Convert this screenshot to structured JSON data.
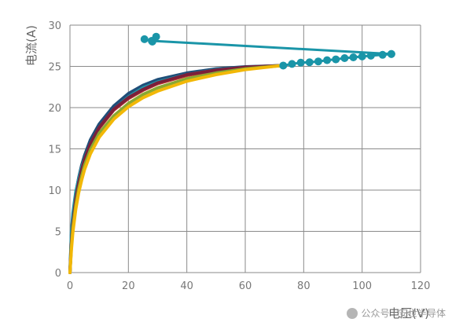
{
  "chart_data": {
    "type": "line",
    "xlabel": "电压(V)",
    "ylabel": "电流(A)",
    "xlim": [
      0,
      120
    ],
    "ylim": [
      0,
      30
    ],
    "x_ticks": [
      0,
      20,
      40,
      60,
      80,
      100,
      120
    ],
    "y_ticks": [
      0,
      5,
      10,
      15,
      20,
      25,
      30
    ],
    "grid": true,
    "curves": [
      {
        "color": "#1f4e79",
        "points": [
          [
            0,
            0
          ],
          [
            0.5,
            4.5
          ],
          [
            1,
            6.8
          ],
          [
            2,
            9.6
          ],
          [
            3,
            11.5
          ],
          [
            4,
            13.0
          ],
          [
            5,
            14.2
          ],
          [
            7,
            16.1
          ],
          [
            10,
            18.0
          ],
          [
            15,
            20.2
          ],
          [
            20,
            21.7
          ],
          [
            25,
            22.7
          ],
          [
            30,
            23.4
          ],
          [
            40,
            24.2
          ],
          [
            50,
            24.7
          ],
          [
            60,
            24.95
          ],
          [
            72.5,
            25.1
          ]
        ]
      },
      {
        "color": "#2196a8",
        "points": [
          [
            0,
            0
          ],
          [
            0.5,
            5.0
          ],
          [
            1,
            7.2
          ],
          [
            2,
            9.8
          ],
          [
            3,
            11.4
          ],
          [
            4,
            12.7
          ],
          [
            5,
            13.8
          ],
          [
            7,
            15.6
          ],
          [
            10,
            17.6
          ],
          [
            15,
            19.8
          ],
          [
            20,
            21.3
          ],
          [
            25,
            22.4
          ],
          [
            30,
            23.1
          ],
          [
            40,
            24.0
          ],
          [
            50,
            24.6
          ],
          [
            60,
            24.9
          ],
          [
            72.5,
            25.1
          ]
        ]
      },
      {
        "color": "#c0392b",
        "points": [
          [
            0,
            0
          ],
          [
            0.5,
            3.5
          ],
          [
            1,
            5.8
          ],
          [
            2,
            8.8
          ],
          [
            3,
            10.8
          ],
          [
            4,
            12.3
          ],
          [
            5,
            13.6
          ],
          [
            7,
            15.5
          ],
          [
            10,
            17.5
          ],
          [
            15,
            19.7
          ],
          [
            20,
            21.1
          ],
          [
            25,
            22.1
          ],
          [
            30,
            22.9
          ],
          [
            40,
            23.9
          ],
          [
            50,
            24.5
          ],
          [
            60,
            24.85
          ],
          [
            72.5,
            25.1
          ]
        ]
      },
      {
        "color": "#7b1f3a",
        "points": [
          [
            0,
            0
          ],
          [
            0.5,
            3.6
          ],
          [
            1,
            5.9
          ],
          [
            2,
            8.9
          ],
          [
            3,
            10.9
          ],
          [
            4,
            12.4
          ],
          [
            5,
            13.7
          ],
          [
            7,
            15.6
          ],
          [
            10,
            17.6
          ],
          [
            15,
            19.8
          ],
          [
            20,
            21.2
          ],
          [
            25,
            22.2
          ],
          [
            30,
            23.0
          ],
          [
            40,
            24.0
          ],
          [
            50,
            24.55
          ],
          [
            60,
            24.9
          ],
          [
            72.5,
            25.1
          ]
        ]
      },
      {
        "color": "#8aa832",
        "points": [
          [
            0,
            0
          ],
          [
            0.5,
            3.2
          ],
          [
            1,
            5.4
          ],
          [
            2,
            8.2
          ],
          [
            3,
            10.2
          ],
          [
            4,
            11.7
          ],
          [
            5,
            13.0
          ],
          [
            7,
            14.9
          ],
          [
            10,
            16.9
          ],
          [
            15,
            19.0
          ],
          [
            20,
            20.5
          ],
          [
            25,
            21.6
          ],
          [
            30,
            22.4
          ],
          [
            40,
            23.5
          ],
          [
            50,
            24.2
          ],
          [
            60,
            24.7
          ],
          [
            72.5,
            25.1
          ]
        ]
      },
      {
        "color": "#f2b807",
        "points": [
          [
            0,
            0
          ],
          [
            0.5,
            2.8
          ],
          [
            1,
            4.9
          ],
          [
            2,
            7.7
          ],
          [
            3,
            9.7
          ],
          [
            4,
            11.2
          ],
          [
            5,
            12.5
          ],
          [
            7,
            14.4
          ],
          [
            10,
            16.4
          ],
          [
            15,
            18.6
          ],
          [
            20,
            20.1
          ],
          [
            25,
            21.2
          ],
          [
            30,
            22.0
          ],
          [
            40,
            23.2
          ],
          [
            50,
            24.0
          ],
          [
            60,
            24.6
          ],
          [
            72.5,
            25.1
          ]
        ]
      }
    ],
    "dotted_series": {
      "color": "#1a95a8",
      "points": [
        [
          73,
          25.1
        ],
        [
          76,
          25.3
        ],
        [
          79,
          25.45
        ],
        [
          82,
          25.5
        ],
        [
          85,
          25.6
        ],
        [
          88,
          25.75
        ],
        [
          91,
          25.85
        ],
        [
          94,
          26.0
        ],
        [
          97,
          26.1
        ],
        [
          100,
          26.2
        ],
        [
          103,
          26.3
        ],
        [
          107,
          26.4
        ],
        [
          110,
          26.5
        ]
      ]
    },
    "top_line": {
      "color": "#1a95a8",
      "points": [
        [
          28,
          28.1
        ],
        [
          110,
          26.5
        ]
      ]
    },
    "top_cluster": {
      "color": "#1a95a8",
      "points": [
        [
          25.5,
          28.3
        ],
        [
          28.2,
          28.0
        ],
        [
          29.5,
          28.6
        ]
      ]
    }
  },
  "watermark": {
    "text": "公众号 · 安世半导体"
  }
}
